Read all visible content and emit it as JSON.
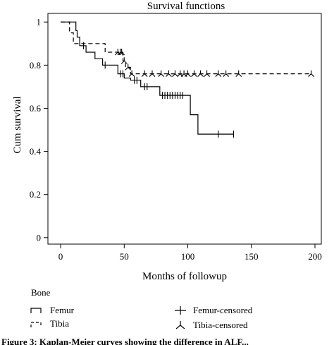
{
  "chart_data": {
    "type": "line",
    "subtype": "kaplan-meier",
    "title": "Survival functions",
    "xlabel": "Months of followup",
    "ylabel": "Cum survival",
    "xlim": [
      -10,
      205
    ],
    "ylim": [
      -0.03,
      1.04
    ],
    "xticks": [
      0,
      50,
      100,
      150,
      200
    ],
    "xtick_labels": [
      "0",
      "50",
      "100",
      "150",
      "200"
    ],
    "yticks": [
      0,
      0.2,
      0.4,
      0.6,
      0.8,
      1
    ],
    "ytick_labels": [
      "0",
      "0.2",
      "0.4",
      "0.6",
      "0.8",
      "1"
    ],
    "grid": false,
    "series": [
      {
        "name": "Femur",
        "style": "solid",
        "color": "#000000",
        "steps": [
          [
            0,
            1.0
          ],
          [
            12,
            0.96
          ],
          [
            13,
            0.93
          ],
          [
            15,
            0.89
          ],
          [
            20,
            0.86
          ],
          [
            27,
            0.83
          ],
          [
            33,
            0.8
          ],
          [
            45,
            0.76
          ],
          [
            50,
            0.74
          ],
          [
            55,
            0.73
          ],
          [
            63,
            0.7
          ],
          [
            78,
            0.66
          ],
          [
            102,
            0.57
          ],
          [
            108,
            0.48
          ],
          [
            136,
            0.48
          ]
        ],
        "censored_x": [
          18,
          35,
          47,
          49,
          58,
          60,
          66,
          68,
          80,
          82,
          84,
          86,
          88,
          90,
          92,
          94,
          96,
          124,
          136
        ]
      },
      {
        "name": "Tibia",
        "style": "dashed",
        "color": "#000000",
        "steps": [
          [
            0,
            1.0
          ],
          [
            7,
            0.95
          ],
          [
            10,
            0.9
          ],
          [
            35,
            0.86
          ],
          [
            49,
            0.82
          ],
          [
            51,
            0.79
          ],
          [
            55,
            0.76
          ],
          [
            197,
            0.76
          ]
        ],
        "censored_x": [
          45,
          47,
          48,
          50,
          53,
          56,
          66,
          72,
          79,
          85,
          90,
          94,
          97,
          100,
          105,
          110,
          115,
          124,
          130,
          140,
          197
        ]
      }
    ],
    "legend": {
      "placement": "bottom-left",
      "title": "Bone",
      "entries": [
        "Femur",
        "Tibia",
        "Femur-censored",
        "Tibia-censored"
      ]
    }
  },
  "caption_partial": "Figure 3: Kaplan-Meier curves showing the difference in ALF..."
}
